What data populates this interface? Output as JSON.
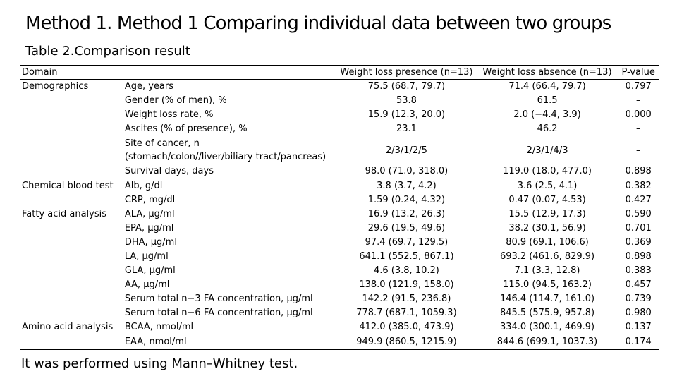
{
  "title": "Method 1. Method 1 Comparing individual data between two groups",
  "subtitle": "Table 2.Comparison result",
  "footnote": "It was performed using Mann–Whitney test.",
  "table": {
    "headers": [
      "Domain",
      "",
      "Weight loss presence (n=13)",
      "Weight loss absence (n=13)",
      "P-value"
    ],
    "rows": [
      {
        "domain": "Demographics",
        "item": "Age, years",
        "presence": "75.5 (68.7, 79.7)",
        "absence": "71.4 (66.4, 79.7)",
        "p": "0.797"
      },
      {
        "domain": "",
        "item": "Gender (% of men), %",
        "presence": "53.8",
        "absence": "61.5",
        "p": "–"
      },
      {
        "domain": "",
        "item": "Weight loss rate, %",
        "presence": "15.9 (12.3, 20.0)",
        "absence": "2.0 (−4.4, 3.9)",
        "p": "0.000"
      },
      {
        "domain": "",
        "item": "Ascites (% of presence), %",
        "presence": "23.1",
        "absence": "46.2",
        "p": "–"
      },
      {
        "domain": "",
        "item": "Site of cancer, n",
        "item2": "(stomach/colon//liver/biliary tract/pancreas)",
        "presence": "2/3/1/2/5",
        "absence": "2/3/1/4/3",
        "p": "–"
      },
      {
        "domain": "",
        "item": "Survival days, days",
        "presence": "98.0 (71.0, 318.0)",
        "absence": "119.0 (18.0, 477.0)",
        "p": "0.898"
      },
      {
        "domain": "Chemical blood test",
        "item": "Alb, g/dl",
        "presence": "3.8 (3.7, 4.2)",
        "absence": "3.6 (2.5, 4.1)",
        "p": "0.382"
      },
      {
        "domain": "",
        "item": "CRP, mg/dl",
        "presence": "1.59 (0.24, 4.32)",
        "absence": "0.47 (0.07, 4.53)",
        "p": "0.427"
      },
      {
        "domain": "Fatty acid analysis",
        "item": "ALA, μg/ml",
        "presence": "16.9 (13.2, 26.3)",
        "absence": "15.5 (12.9, 17.3)",
        "p": "0.590"
      },
      {
        "domain": "",
        "item": "EPA, μg/ml",
        "presence": "29.6 (19.5, 49.6)",
        "absence": "38.2 (30.1, 56.9)",
        "p": "0.701"
      },
      {
        "domain": "",
        "item": "DHA, μg/ml",
        "presence": "97.4 (69.7, 129.5)",
        "absence": "80.9 (69.1, 106.6)",
        "p": "0.369"
      },
      {
        "domain": "",
        "item": "LA, μg/ml",
        "presence": "641.1 (552.5, 867.1)",
        "absence": "693.2 (461.6, 829.9)",
        "p": "0.898"
      },
      {
        "domain": "",
        "item": "GLA, μg/ml",
        "presence": "4.6 (3.8, 10.2)",
        "absence": "7.1 (3.3, 12.8)",
        "p": "0.383"
      },
      {
        "domain": "",
        "item": "AA, μg/ml",
        "presence": "138.0 (121.9, 158.0)",
        "absence": "115.0 (94.5, 163.2)",
        "p": "0.457"
      },
      {
        "domain": "",
        "item": "Serum total n−3 FA concentration, μg/ml",
        "presence": "142.2 (91.5, 236.8)",
        "absence": "146.4 (114.7, 161.0)",
        "p": "0.739"
      },
      {
        "domain": "",
        "item": "Serum total n−6 FA concentration, μg/ml",
        "presence": "778.7 (687.1, 1059.3)",
        "absence": "845.5 (575.9, 957.8)",
        "p": "0.980"
      },
      {
        "domain": "Amino acid analysis",
        "item": "BCAA, nmol/ml",
        "presence": "412.0 (385.0, 473.9)",
        "absence": "334.0 (300.1, 469.9)",
        "p": "0.137"
      },
      {
        "domain": "",
        "item": "EAA, nmol/ml",
        "presence": "949.9 (860.5, 1215.9)",
        "absence": "844.6 (699.1, 1037.3)",
        "p": "0.174"
      }
    ]
  }
}
